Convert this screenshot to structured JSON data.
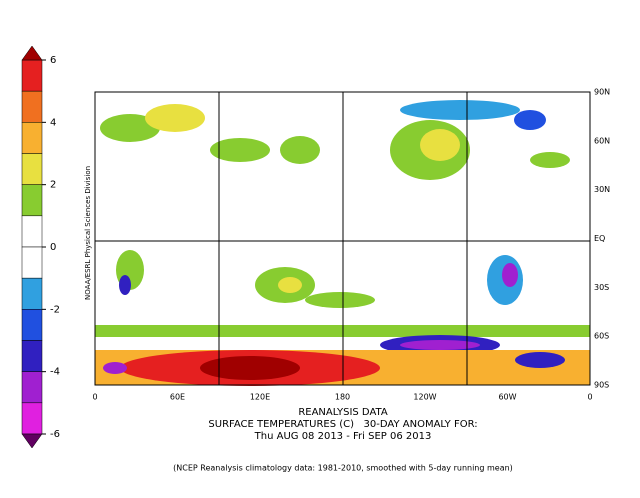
{
  "colorbar": {
    "ticks": [
      6,
      4,
      2,
      0,
      -2,
      -4,
      -6
    ],
    "lim": [
      -6,
      6
    ],
    "colors": [
      "#e52020",
      "#f07020",
      "#f8b030",
      "#e8e040",
      "#88cc30",
      "#ffffff",
      "#ffffff",
      "#30a0e0",
      "#2050e0",
      "#3020c0",
      "#a020d0",
      "#e020e0"
    ],
    "over_color": "#a00000",
    "under_color": "#600060"
  },
  "map": {
    "lon_labels": [
      "0",
      "60E",
      "120E",
      "180",
      "120W",
      "60W",
      "0"
    ],
    "lat_labels": [
      "90N",
      "60N",
      "30N",
      "EQ",
      "30S",
      "60S",
      "90S"
    ],
    "credit": "NOAA/ESRL Physical Sciences Division"
  },
  "caption": {
    "line1": "REANALYSIS DATA",
    "line2": "SURFACE TEMPERATURES (C)   30-DAY ANOMALY FOR:",
    "line3": "Thu AUG 08 2013 - Fri SEP 06 2013",
    "footnote": "(NCEP Reanalysis climatology data: 1981-2010, smoothed with 5-day running mean)"
  }
}
